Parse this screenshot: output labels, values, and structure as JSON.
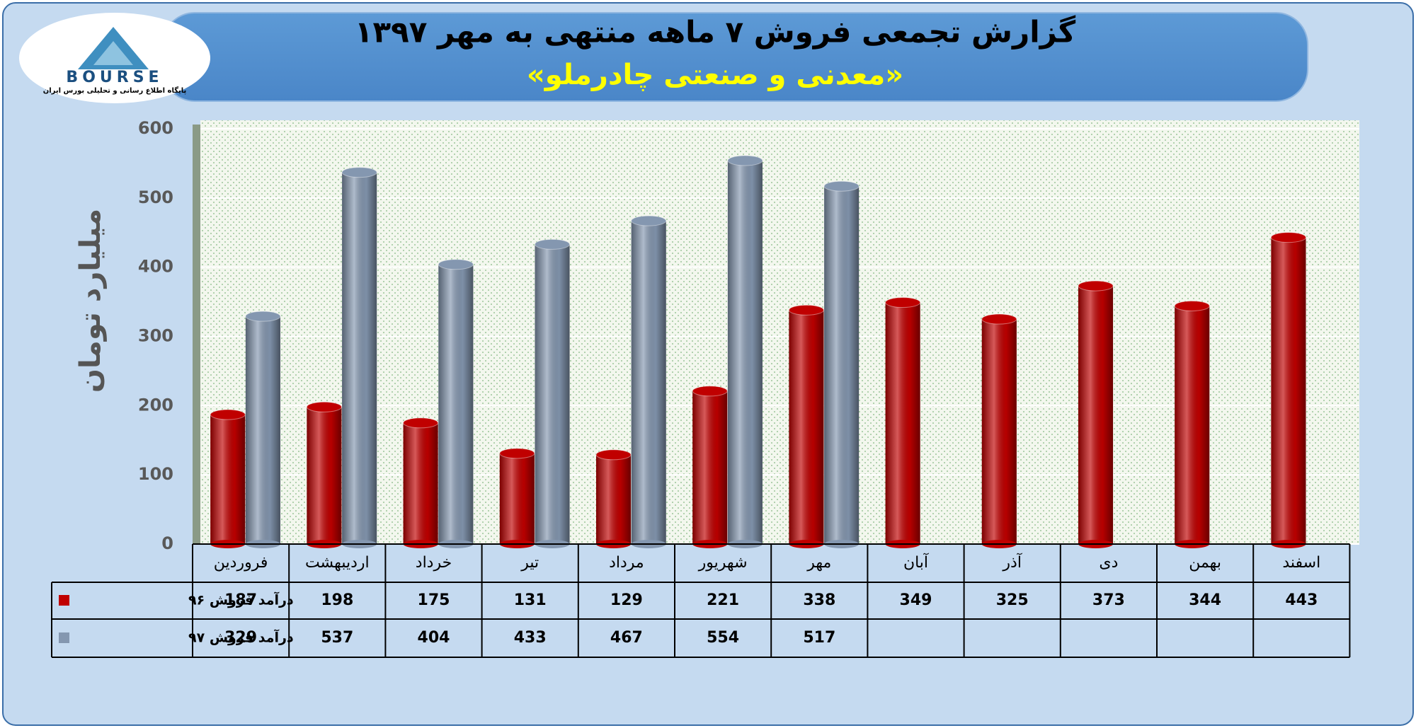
{
  "logo": {
    "name": "BOURSE",
    "caption": "پایگاه اطلاع رسانی و تحلیلی بورس ایران"
  },
  "chart_data": {
    "type": "bar",
    "title": "گزارش تجمعی فروش ۷ ماهه منتهی به مهر ۱۳۹۷",
    "subtitle": "«معدنی و صنعتی چادرملو»",
    "y_label": "میلیارد تومان",
    "categories": [
      "فروردین",
      "اردیبهشت",
      "خرداد",
      "تیر",
      "مرداد",
      "شهریور",
      "مهر",
      "آبان",
      "آذر",
      "دی",
      "بهمن",
      "اسفند"
    ],
    "series": [
      {
        "name": "درآمد فروش ۹۶",
        "color": "#c00000",
        "values": [
          187,
          198,
          175,
          131,
          129,
          221,
          338,
          349,
          325,
          373,
          344,
          443
        ]
      },
      {
        "name": "درآمد فروش ۹۷",
        "color": "#8497b0",
        "values": [
          329,
          537,
          404,
          433,
          467,
          554,
          517,
          null,
          null,
          null,
          null,
          null
        ]
      }
    ],
    "ylim": [
      0,
      600
    ],
    "yticks": [
      0,
      100,
      200,
      300,
      400,
      500,
      600
    ],
    "grid": true
  }
}
